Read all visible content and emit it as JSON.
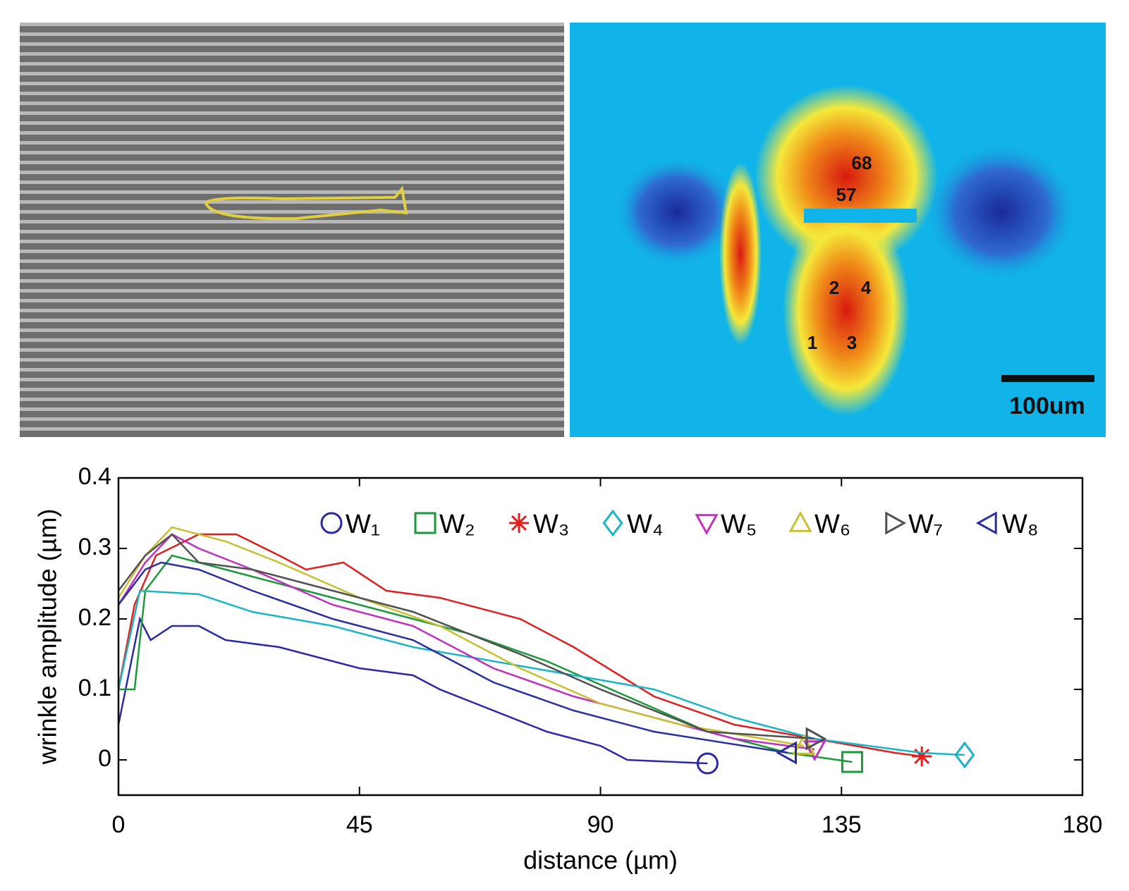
{
  "micrograph": {
    "heatmap_labels": [
      "68",
      "57",
      "2",
      "4",
      "1",
      "3"
    ],
    "scale_bar": "100um"
  },
  "chart_data": {
    "type": "line",
    "xlabel": "distance (µm)",
    "ylabel": "wrinkle amplitude (µm)",
    "xlim": [
      0,
      180
    ],
    "xticks": [
      0,
      45,
      90,
      135,
      180
    ],
    "ylim": [
      -0.05,
      0.4
    ],
    "yticks": [
      0,
      0.1,
      0.2,
      0.3,
      0.4
    ],
    "legend": "top-right",
    "series": [
      {
        "name": "W₁",
        "color": "#2a2aa8",
        "marker": "circle",
        "x": [
          0,
          4,
          6,
          10,
          15,
          20,
          30,
          35,
          45,
          55,
          60,
          70,
          80,
          90,
          95,
          110
        ],
        "values": [
          0.05,
          0.2,
          0.17,
          0.19,
          0.19,
          0.17,
          0.16,
          0.15,
          0.13,
          0.12,
          0.1,
          0.07,
          0.04,
          0.02,
          0.0,
          -0.005
        ]
      },
      {
        "name": "W₂",
        "color": "#1a9a3a",
        "marker": "square",
        "x": [
          0,
          3,
          5,
          10,
          15,
          25,
          35,
          50,
          65,
          80,
          95,
          110,
          125,
          137
        ],
        "values": [
          0.1,
          0.1,
          0.24,
          0.29,
          0.28,
          0.26,
          0.24,
          0.21,
          0.18,
          0.14,
          0.09,
          0.04,
          0.01,
          -0.003
        ]
      },
      {
        "name": "W₃",
        "color": "#e0201e",
        "marker": "star",
        "x": [
          0,
          3,
          7,
          15,
          22,
          30,
          35,
          42,
          50,
          60,
          75,
          85,
          100,
          115,
          130,
          145,
          150
        ],
        "values": [
          0.1,
          0.22,
          0.29,
          0.32,
          0.32,
          0.29,
          0.27,
          0.28,
          0.24,
          0.23,
          0.2,
          0.16,
          0.09,
          0.05,
          0.03,
          0.01,
          0.005
        ]
      },
      {
        "name": "W₄",
        "color": "#1ab4c8",
        "marker": "diamond",
        "x": [
          0,
          4,
          15,
          25,
          40,
          55,
          70,
          85,
          100,
          115,
          130,
          150,
          158
        ],
        "values": [
          0.1,
          0.24,
          0.235,
          0.21,
          0.19,
          0.16,
          0.14,
          0.12,
          0.1,
          0.06,
          0.03,
          0.01,
          0.007
        ]
      },
      {
        "name": "W₅",
        "color": "#c030c0",
        "marker": "tri-down",
        "x": [
          0,
          5,
          10,
          15,
          25,
          40,
          55,
          70,
          85,
          100,
          115,
          130
        ],
        "values": [
          0.22,
          0.28,
          0.32,
          0.3,
          0.27,
          0.22,
          0.19,
          0.13,
          0.09,
          0.06,
          0.03,
          0.015
        ]
      },
      {
        "name": "W₆",
        "color": "#c8c030",
        "marker": "tri-up",
        "x": [
          0,
          5,
          10,
          20,
          30,
          45,
          60,
          75,
          90,
          105,
          128
        ],
        "values": [
          0.23,
          0.29,
          0.33,
          0.31,
          0.28,
          0.23,
          0.19,
          0.13,
          0.08,
          0.05,
          0.02
        ]
      },
      {
        "name": "W₇",
        "color": "#505050",
        "marker": "tri-right",
        "x": [
          0,
          5,
          10,
          15,
          25,
          40,
          55,
          75,
          90,
          110,
          130
        ],
        "values": [
          0.24,
          0.29,
          0.32,
          0.28,
          0.27,
          0.24,
          0.21,
          0.15,
          0.1,
          0.04,
          0.03
        ]
      },
      {
        "name": "W₈",
        "color": "#2830a0",
        "marker": "tri-left",
        "x": [
          0,
          5,
          8,
          15,
          25,
          40,
          55,
          70,
          85,
          100,
          125
        ],
        "values": [
          0.22,
          0.27,
          0.28,
          0.27,
          0.24,
          0.2,
          0.17,
          0.11,
          0.07,
          0.04,
          0.01
        ]
      }
    ]
  }
}
